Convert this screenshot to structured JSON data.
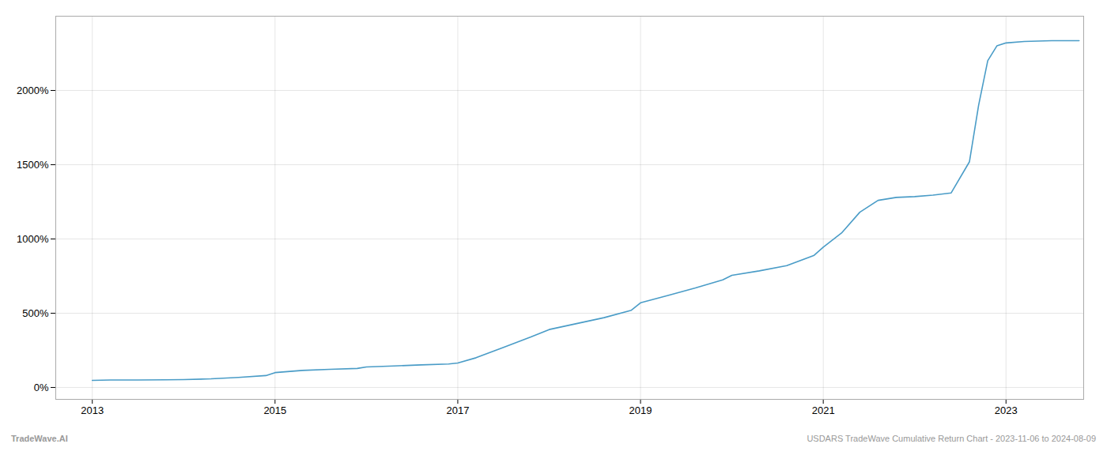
{
  "chart_data": {
    "type": "line",
    "x": [
      2013.0,
      2013.2,
      2013.5,
      2013.8,
      2014.0,
      2014.3,
      2014.6,
      2014.9,
      2015.0,
      2015.3,
      2015.6,
      2015.9,
      2016.0,
      2016.3,
      2016.6,
      2016.9,
      2017.0,
      2017.2,
      2017.5,
      2017.8,
      2018.0,
      2018.3,
      2018.6,
      2018.9,
      2019.0,
      2019.3,
      2019.6,
      2019.9,
      2020.0,
      2020.3,
      2020.6,
      2020.9,
      2021.0,
      2021.2,
      2021.4,
      2021.6,
      2021.8,
      2022.0,
      2022.2,
      2022.4,
      2022.6,
      2022.7,
      2022.8,
      2022.9,
      2023.0,
      2023.2,
      2023.5,
      2023.8
    ],
    "values": [
      48,
      50,
      50,
      52,
      53,
      58,
      68,
      80,
      100,
      115,
      122,
      128,
      138,
      145,
      152,
      158,
      165,
      200,
      270,
      340,
      390,
      430,
      470,
      520,
      570,
      620,
      670,
      725,
      755,
      785,
      820,
      890,
      945,
      1040,
      1180,
      1260,
      1280,
      1285,
      1295,
      1310,
      1520,
      1900,
      2200,
      2300,
      2320,
      2330,
      2335,
      2335
    ],
    "color": "#4a9cc7",
    "xlim": [
      2012.6,
      2023.85
    ],
    "xticks": [
      2013,
      2015,
      2017,
      2019,
      2021,
      2023
    ],
    "ylim": [
      -80,
      2500
    ],
    "yticks": [
      {
        "value": 0,
        "label": "0%"
      },
      {
        "value": 500,
        "label": "500%"
      },
      {
        "value": 1000,
        "label": "1000%"
      },
      {
        "value": 1500,
        "label": "1500%"
      },
      {
        "value": 2000,
        "label": "2000%"
      }
    ],
    "grid": true,
    "annotations": [
      "TradeWave.AI",
      "USDARS TradeWave Cumulative Return Chart - 2023-11-06 to 2024-08-09"
    ]
  }
}
